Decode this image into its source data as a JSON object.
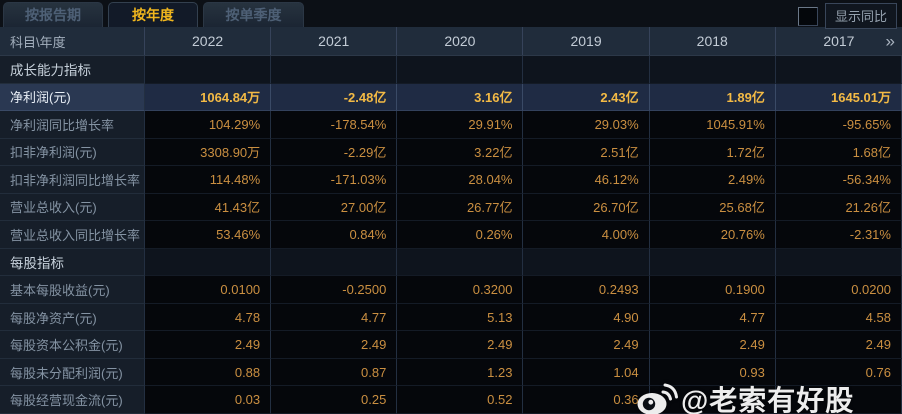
{
  "tab_bar": {
    "tabs": [
      {
        "label": "按报告期",
        "active": false
      },
      {
        "label": "按年度",
        "active": true
      },
      {
        "label": "按单季度",
        "active": false
      }
    ]
  },
  "controls": {
    "show_yoy_label": "显示同比",
    "checkbox_checked": false
  },
  "table": {
    "corner_label": "科目\\年度",
    "year_columns": [
      "2022",
      "2021",
      "2020",
      "2019",
      "2018",
      "2017"
    ],
    "more_years_icon": "»",
    "rows": [
      {
        "type": "section",
        "label": "成长能力指标",
        "highlight": false,
        "values": [
          "",
          "",
          "",
          "",
          "",
          ""
        ]
      },
      {
        "type": "data",
        "label": "净利润(元)",
        "highlight": true,
        "values": [
          "1064.84万",
          "-2.48亿",
          "3.16亿",
          "2.43亿",
          "1.89亿",
          "1645.01万"
        ]
      },
      {
        "type": "data",
        "label": "净利润同比增长率",
        "highlight": false,
        "values": [
          "104.29%",
          "-178.54%",
          "29.91%",
          "29.03%",
          "1045.91%",
          "-95.65%"
        ]
      },
      {
        "type": "data",
        "label": "扣非净利润(元)",
        "highlight": false,
        "values": [
          "3308.90万",
          "-2.29亿",
          "3.22亿",
          "2.51亿",
          "1.72亿",
          "1.68亿"
        ]
      },
      {
        "type": "data",
        "label": "扣非净利润同比增长率",
        "highlight": false,
        "values": [
          "114.48%",
          "-171.03%",
          "28.04%",
          "46.12%",
          "2.49%",
          "-56.34%"
        ]
      },
      {
        "type": "data",
        "label": "营业总收入(元)",
        "highlight": false,
        "values": [
          "41.43亿",
          "27.00亿",
          "26.77亿",
          "26.70亿",
          "25.68亿",
          "21.26亿"
        ]
      },
      {
        "type": "data",
        "label": "营业总收入同比增长率",
        "highlight": false,
        "values": [
          "53.46%",
          "0.84%",
          "0.26%",
          "4.00%",
          "20.76%",
          "-2.31%"
        ]
      },
      {
        "type": "section",
        "label": "每股指标",
        "highlight": false,
        "values": [
          "",
          "",
          "",
          "",
          "",
          ""
        ]
      },
      {
        "type": "data",
        "label": "基本每股收益(元)",
        "highlight": false,
        "values": [
          "0.0100",
          "-0.2500",
          "0.3200",
          "0.2493",
          "0.1900",
          "0.0200"
        ]
      },
      {
        "type": "data",
        "label": "每股净资产(元)",
        "highlight": false,
        "values": [
          "4.78",
          "4.77",
          "5.13",
          "4.90",
          "4.77",
          "4.58"
        ]
      },
      {
        "type": "data",
        "label": "每股资本公积金(元)",
        "highlight": false,
        "values": [
          "2.49",
          "2.49",
          "2.49",
          "2.49",
          "2.49",
          "2.49"
        ]
      },
      {
        "type": "data",
        "label": "每股未分配利润(元)",
        "highlight": false,
        "values": [
          "0.88",
          "0.87",
          "1.23",
          "1.04",
          "0.93",
          "0.76"
        ]
      },
      {
        "type": "data",
        "label": "每股经营现金流(元)",
        "highlight": false,
        "values": [
          "0.03",
          "0.25",
          "0.52",
          "0.36",
          "",
          ""
        ]
      }
    ]
  },
  "watermark": {
    "icon": "weibo-icon",
    "text": "@老索有好股"
  },
  "colors": {
    "page_bg": "#0c1016",
    "accent_gold": "#f0b61e",
    "value_orange": "#ca8f41",
    "highlight_value": "#f3ba45",
    "highlight_row_bg": "#1f2b44",
    "header_bg": "#202c3b",
    "label_bg": "#161e29",
    "value_bg": "#05070b",
    "watermark_color": "#ffffff"
  }
}
